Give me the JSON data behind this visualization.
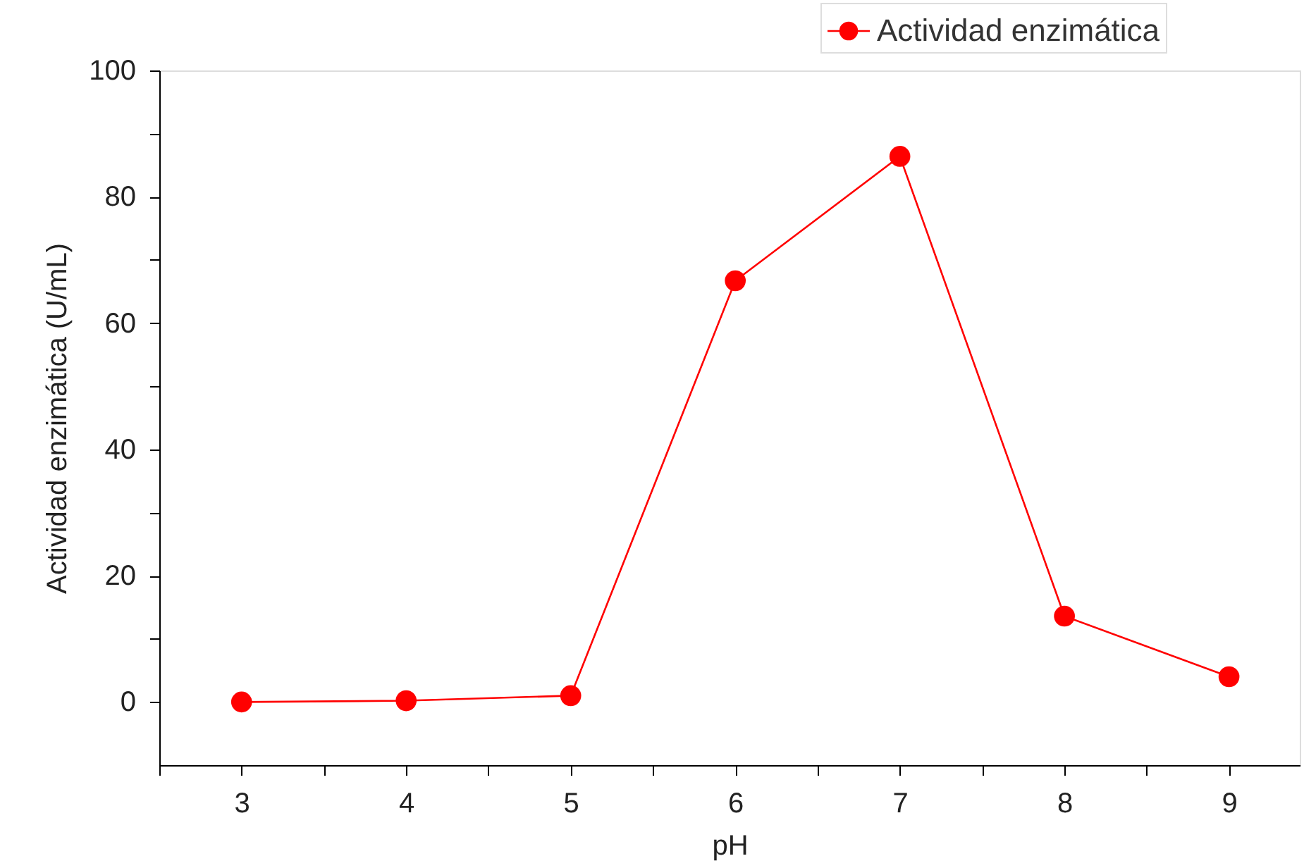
{
  "chart_data": {
    "type": "line",
    "xlabel": "pH",
    "ylabel": "Actividad enzimática (U/mL)",
    "x": [
      3,
      4,
      5,
      6,
      7,
      8,
      9
    ],
    "series": [
      {
        "name": "Actividad enzimática",
        "color": "#ff0000",
        "values": [
          0,
          0.2,
          1,
          66.7,
          86.4,
          13.6,
          4.0
        ]
      }
    ],
    "xlim": [
      2.5,
      9.43
    ],
    "xticks": [
      {
        "value": 2.5,
        "label": null
      },
      3,
      {
        "value": 3.5,
        "label": null
      },
      4,
      {
        "value": 4.5,
        "label": null
      },
      5,
      {
        "value": 5.5,
        "label": null
      },
      6,
      {
        "value": 6.5,
        "label": null
      },
      7,
      {
        "value": 7.5,
        "label": null
      },
      8,
      {
        "value": 8.5,
        "label": null
      },
      9
    ],
    "ylim": [
      -10,
      100
    ],
    "yticks": [
      0,
      {
        "value": 10,
        "label": null
      },
      20,
      {
        "value": 30,
        "label": null
      },
      40,
      {
        "value": 50,
        "label": null
      },
      60,
      {
        "value": 70,
        "label": null
      },
      80,
      {
        "value": 90,
        "label": null
      },
      100
    ],
    "grid": false,
    "legend": "top right",
    "marker": "circle",
    "line_style": "solid"
  }
}
